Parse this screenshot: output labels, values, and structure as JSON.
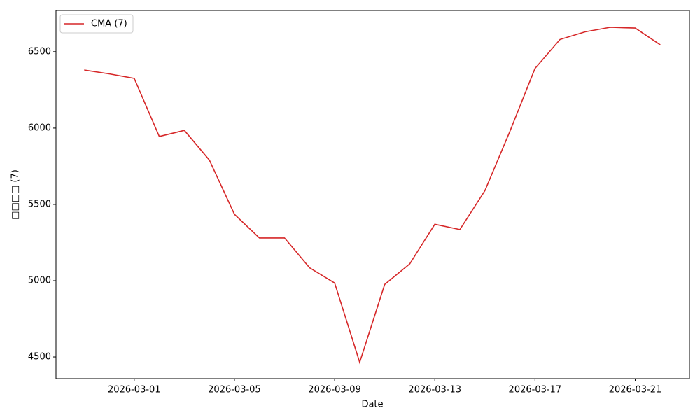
{
  "chart_data": {
    "type": "line",
    "xlabel": "Date",
    "ylabel": "□□□□ (7)",
    "x": [
      "2026-02-27",
      "2026-02-28",
      "2026-03-01",
      "2026-03-02",
      "2026-03-03",
      "2026-03-04",
      "2026-03-05",
      "2026-03-06",
      "2026-03-07",
      "2026-03-08",
      "2026-03-09",
      "2026-03-10",
      "2026-03-11",
      "2026-03-12",
      "2026-03-13",
      "2026-03-14",
      "2026-03-15",
      "2026-03-16",
      "2026-03-17",
      "2026-03-18",
      "2026-03-19",
      "2026-03-20",
      "2026-03-21",
      "2026-03-22"
    ],
    "series": [
      {
        "name": "CMA (7)",
        "color": "#d62728",
        "values": [
          6380,
          6355,
          6325,
          5945,
          5985,
          5790,
          5435,
          5280,
          5280,
          5085,
          4985,
          4465,
          4975,
          5110,
          5370,
          5335,
          5590,
          5980,
          6390,
          6580,
          6630,
          6660,
          6655,
          6545
        ]
      }
    ],
    "xlim": [
      "2026-02-25T21:00",
      "2026-03-23T04:00"
    ],
    "xticks": [
      "2026-03-01",
      "2026-03-05",
      "2026-03-09",
      "2026-03-13",
      "2026-03-17",
      "2026-03-21"
    ],
    "ylim": [
      4358,
      6770
    ],
    "yticks": [
      4500,
      5000,
      5500,
      6000,
      6500
    ],
    "legend": "upper-left"
  }
}
